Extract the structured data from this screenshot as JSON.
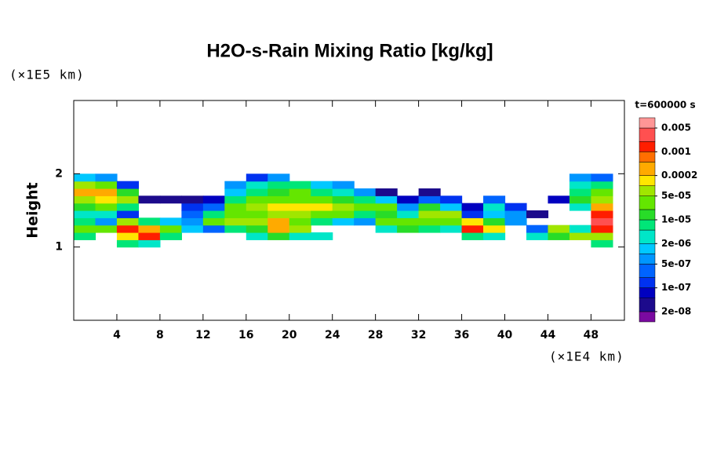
{
  "chart_data": {
    "type": "contourf",
    "title": "H2O-s-Rain Mixing Ratio [kg/kg]",
    "ylabel": "Height",
    "x_unit": "(×1E4 km)",
    "y_unit": "(×1E5 km)",
    "time_label": "t=600000 s",
    "xlim": [
      0,
      51.1
    ],
    "ylim": [
      0,
      3
    ],
    "xticks": [
      4,
      8,
      12,
      16,
      20,
      24,
      28,
      32,
      36,
      40,
      44,
      48
    ],
    "yticks": [
      1,
      2
    ],
    "x": [
      1,
      3,
      5,
      7,
      9,
      11,
      13,
      15,
      17,
      19,
      21,
      23,
      25,
      27,
      29,
      31,
      33,
      35,
      37,
      39,
      41,
      43,
      45,
      47,
      49
    ],
    "y": [
      1.05,
      1.15,
      1.25,
      1.35,
      1.45,
      1.55,
      1.65,
      1.75,
      1.85,
      1.95
    ],
    "z": [
      [
        null,
        5e-06,
        2e-05,
        5e-06,
        2e-06,
        1e-05,
        5e-05,
        0.0003,
        5e-05,
        1e-06
      ],
      [
        null,
        null,
        2e-05,
        5e-07,
        2e-06,
        2e-05,
        0.0001,
        0.0003,
        2e-05,
        5e-07
      ],
      [
        5e-06,
        0.0001,
        0.001,
        5e-05,
        1e-07,
        5e-06,
        5e-05,
        1e-05,
        1e-07,
        null
      ],
      [
        2e-06,
        0.001,
        0.0002,
        5e-06,
        null,
        null,
        3e-08,
        null,
        null,
        null
      ],
      [
        null,
        5e-06,
        2e-05,
        1e-06,
        null,
        null,
        3e-08,
        null,
        null,
        null
      ],
      [
        null,
        null,
        1e-06,
        5e-07,
        3e-07,
        1e-07,
        3e-08,
        null,
        null,
        null
      ],
      [
        null,
        null,
        2e-07,
        2e-05,
        5e-06,
        2e-07,
        5e-08,
        null,
        null,
        null
      ],
      [
        null,
        null,
        5e-06,
        5e-05,
        2e-05,
        2e-05,
        5e-06,
        1e-06,
        5e-07,
        null
      ],
      [
        null,
        2e-06,
        1e-05,
        5e-05,
        2e-05,
        5e-05,
        2e-05,
        5e-06,
        2e-06,
        1e-07
      ],
      [
        null,
        1e-05,
        0.0003,
        0.0002,
        5e-05,
        0.0001,
        2e-05,
        1e-05,
        5e-06,
        5e-07
      ],
      [
        null,
        2e-06,
        5e-05,
        2e-05,
        5e-05,
        0.0001,
        3e-05,
        2e-05,
        5e-06,
        null
      ],
      [
        null,
        2e-06,
        null,
        5e-06,
        2e-05,
        0.0001,
        2e-05,
        5e-06,
        1e-06,
        null
      ],
      [
        null,
        null,
        null,
        1e-06,
        2e-05,
        5e-05,
        1e-05,
        2e-06,
        5e-07,
        null
      ],
      [
        null,
        null,
        null,
        5e-07,
        5e-06,
        2e-05,
        5e-06,
        5e-07,
        null,
        null
      ],
      [
        null,
        null,
        2e-06,
        2e-05,
        1e-05,
        2e-05,
        1e-06,
        3e-08,
        null,
        null
      ],
      [
        null,
        null,
        1e-05,
        2e-05,
        2e-06,
        5e-07,
        5e-08,
        null,
        null,
        null
      ],
      [
        null,
        null,
        5e-06,
        2e-05,
        5e-05,
        1e-05,
        2e-07,
        3e-08,
        null,
        null
      ],
      [
        null,
        null,
        2e-06,
        2e-05,
        5e-05,
        1e-06,
        1e-07,
        null,
        null,
        null
      ],
      [
        null,
        5e-06,
        0.001,
        0.0001,
        1e-07,
        5e-08,
        null,
        null,
        null,
        null
      ],
      [
        null,
        2e-06,
        0.0001,
        1e-05,
        1e-06,
        2e-06,
        2e-07,
        null,
        null,
        null
      ],
      [
        null,
        null,
        null,
        5e-07,
        5e-07,
        1e-07,
        null,
        null,
        null,
        null
      ],
      [
        null,
        2e-06,
        2e-07,
        null,
        3e-08,
        null,
        null,
        null,
        null,
        null
      ],
      [
        null,
        1e-05,
        5e-05,
        null,
        null,
        null,
        5e-08,
        null,
        null,
        null
      ],
      [
        null,
        5e-05,
        2e-06,
        null,
        null,
        2e-06,
        1e-05,
        5e-06,
        2e-06,
        5e-07
      ],
      [
        5e-06,
        5e-05,
        0.001,
        0.002,
        0.001,
        0.0002,
        5e-05,
        2e-05,
        5e-06,
        2e-07
      ]
    ],
    "colorbar": {
      "levels": [
        1e-08,
        2e-08,
        5e-08,
        1e-07,
        2e-07,
        5e-07,
        1e-06,
        2e-06,
        5e-06,
        1e-05,
        2e-05,
        5e-05,
        0.0001,
        0.0002,
        0.0005,
        0.001,
        0.002,
        0.005,
        0.01
      ],
      "colors": [
        "#7a0aa0",
        "#1c0a8c",
        "#0000c0",
        "#0032f0",
        "#0064ff",
        "#0096ff",
        "#00c8ff",
        "#00e6c8",
        "#00e678",
        "#28dc28",
        "#64e600",
        "#a0e600",
        "#ffe600",
        "#ffaa00",
        "#ff6e00",
        "#ff1e00",
        "#ff5050",
        "#ff9696"
      ],
      "ticks": [
        {
          "value": 2e-08,
          "label": "2e-08"
        },
        {
          "value": 1e-07,
          "label": "1e-07"
        },
        {
          "value": 5e-07,
          "label": "5e-07"
        },
        {
          "value": 2e-06,
          "label": "2e-06"
        },
        {
          "value": 1e-05,
          "label": "1e-05"
        },
        {
          "value": 5e-05,
          "label": "5e-05"
        },
        0.0002,
        0.001,
        0.005
      ]
    }
  }
}
